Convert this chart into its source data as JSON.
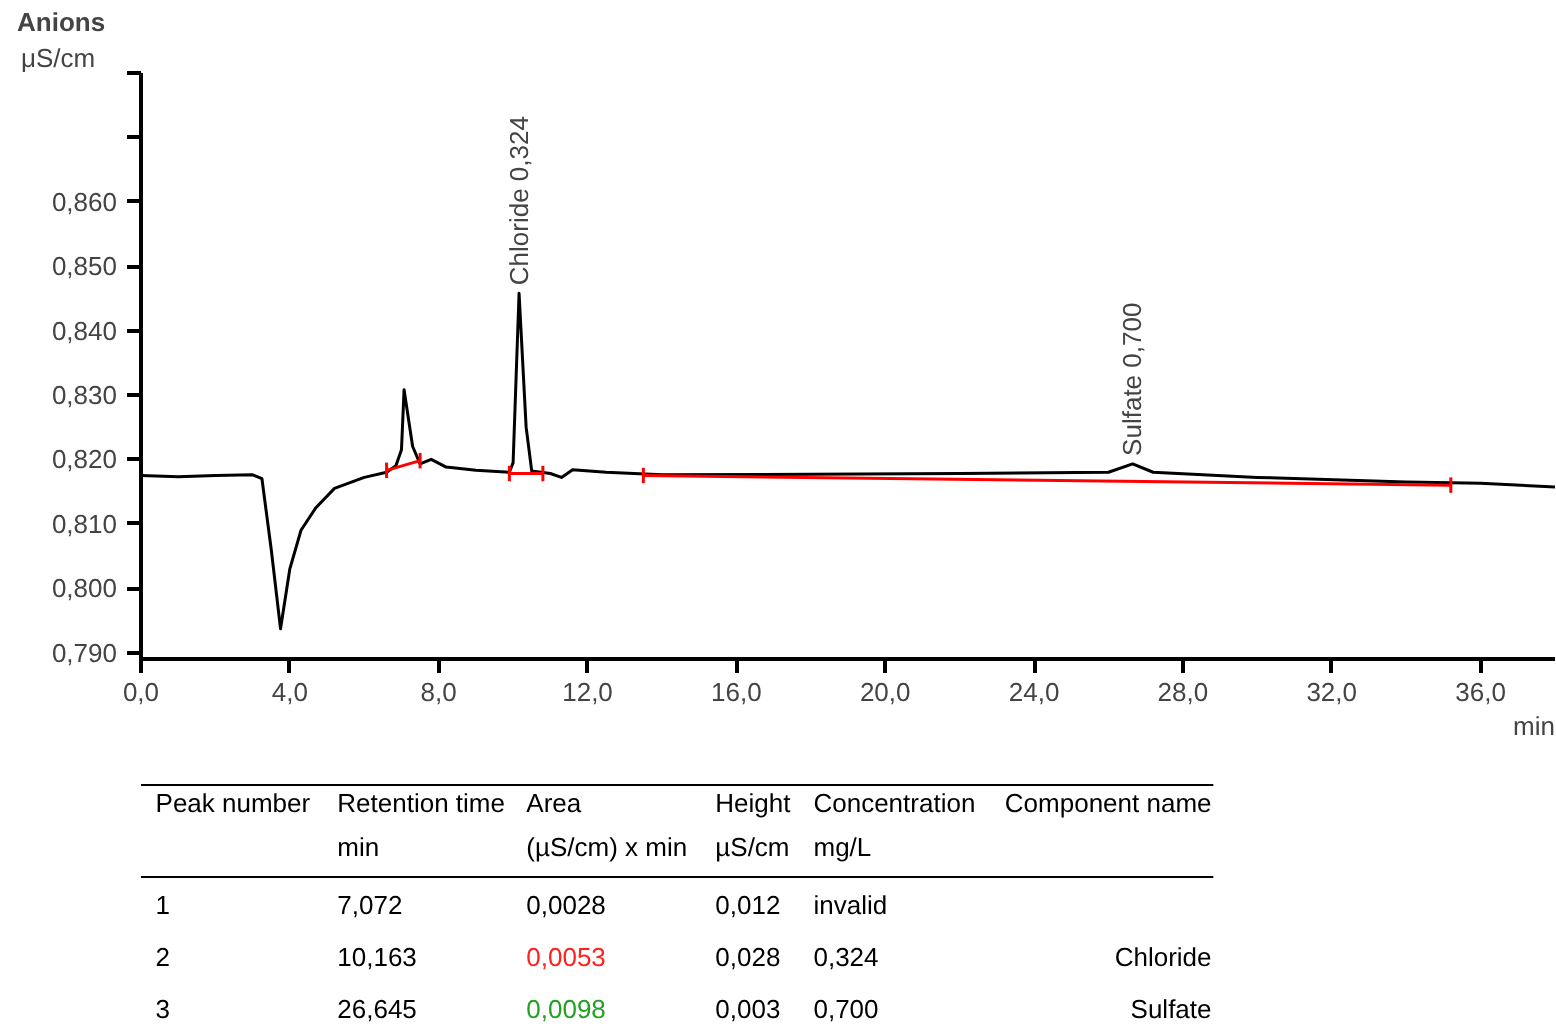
{
  "chart_data": {
    "type": "line",
    "title": "Anions",
    "ylabel": "μS/cm",
    "xlabel": "min",
    "xlim": [
      0,
      38
    ],
    "ylim": [
      0.789,
      0.88
    ],
    "xticks": [
      {
        "value": 0,
        "label": "0,0"
      },
      {
        "value": 4,
        "label": "4,0"
      },
      {
        "value": 8,
        "label": "8,0"
      },
      {
        "value": 12,
        "label": "12,0"
      },
      {
        "value": 16,
        "label": "16,0"
      },
      {
        "value": 20,
        "label": "20,0"
      },
      {
        "value": 24,
        "label": "24,0"
      },
      {
        "value": 28,
        "label": "28,0"
      },
      {
        "value": 32,
        "label": "32,0"
      },
      {
        "value": 36,
        "label": "36,0"
      }
    ],
    "yticks": [
      {
        "value": 0.79,
        "label": "0,790"
      },
      {
        "value": 0.8,
        "label": "0,800"
      },
      {
        "value": 0.81,
        "label": "0,810"
      },
      {
        "value": 0.82,
        "label": "0,820"
      },
      {
        "value": 0.83,
        "label": "0,830"
      },
      {
        "value": 0.84,
        "label": "0,840"
      },
      {
        "value": 0.85,
        "label": "0,850"
      },
      {
        "value": 0.86,
        "label": "0,860"
      },
      {
        "value": 0.87,
        "label": null
      },
      {
        "value": 0.88,
        "label": null
      }
    ],
    "grid": false,
    "series": [
      {
        "color": "#000000",
        "x": [
          0,
          1,
          2,
          3,
          3.25,
          3.5,
          3.75,
          4.0,
          4.3,
          4.7,
          5.2,
          6.0,
          6.6,
          6.85,
          7.0,
          7.07,
          7.3,
          7.5,
          7.8,
          8.2,
          9.0,
          9.9,
          10.0,
          10.16,
          10.35,
          10.5,
          11.0,
          11.3,
          11.6,
          12.5,
          14,
          18,
          22,
          26,
          26.65,
          27.2,
          30,
          34,
          36,
          38
        ],
        "values": [
          0.8175,
          0.8173,
          0.8175,
          0.8176,
          0.817,
          0.806,
          0.7937,
          0.803,
          0.809,
          0.8125,
          0.8155,
          0.8172,
          0.818,
          0.819,
          0.8215,
          0.8308,
          0.822,
          0.8193,
          0.82,
          0.8188,
          0.8183,
          0.818,
          0.8195,
          0.8458,
          0.825,
          0.8182,
          0.8178,
          0.8172,
          0.8184,
          0.818,
          0.8176,
          0.8177,
          0.8178,
          0.818,
          0.8193,
          0.818,
          0.8172,
          0.8165,
          0.8163,
          0.8157
        ]
      },
      {
        "color": "#ff0000",
        "x": [
          6.6,
          7.5,
          8.5,
          9.9,
          10.8,
          12,
          13.5,
          35.2
        ],
        "values": [
          0.8183,
          0.8198,
          null,
          0.8178,
          0.8178,
          null,
          0.8175,
          0.816
        ],
        "errors": [
          0.0012,
          0.0012,
          null,
          0.0012,
          0.0012,
          null,
          0.0012,
          0.0012
        ]
      }
    ],
    "annotations": [
      {
        "text": "Chloride 0,324",
        "x": 10.163,
        "y": 0.8458
      },
      {
        "text": "Sulfate 0,700",
        "x": 26.645,
        "y": 0.8193
      },
      "Peak number",
      "Retention time",
      "Area",
      "Height",
      "Concentration",
      "Component name",
      "min",
      "(µS/cm) x min",
      "µS/cm",
      "mg/L",
      "1",
      "7,072",
      "0,0028",
      "0,012",
      "invalid",
      "2",
      "10,163",
      "0,0053",
      "0,028",
      "0,324",
      "Chloride",
      "3",
      "26,645",
      "0,0098",
      "0,003",
      "0,700",
      "Sulfate"
    ]
  }
}
